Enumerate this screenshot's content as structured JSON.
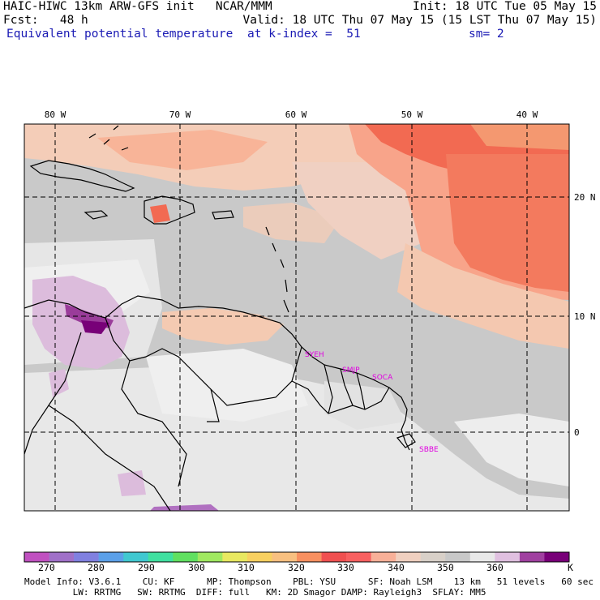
{
  "header": {
    "left_line1": "HAIC-HIWC 13km ARW-GFS init   NCAR/MMM",
    "left_line2": "Fcst:   48 h",
    "left_line3": "Equivalent potential temperature",
    "right_line1": "Init: 18 UTC Tue 05 May 15",
    "right_line2": "Valid: 18 UTC Thu 07 May 15 (15 LST Thu 07 May 15)",
    "kindex": "at k-index =  51",
    "sm": "sm= 2"
  },
  "map": {
    "lon_labels": [
      "80 W",
      "70 W",
      "60 W",
      "50 W",
      "40 W"
    ],
    "lat_labels": [
      "20 N",
      "10 N",
      "0"
    ],
    "stations": [
      "SYEH",
      "SMJP",
      "SOCA",
      "SBBE"
    ]
  },
  "colorbar": {
    "colors": [
      "#c050c0",
      "#a070c8",
      "#8080e0",
      "#5ba0e8",
      "#40c8d0",
      "#40e0a0",
      "#60e060",
      "#a0e860",
      "#e8e860",
      "#f8d060",
      "#f8c080",
      "#f89060",
      "#f05050",
      "#f86060",
      "#f8b098",
      "#f0d0c0",
      "#d8d0c8",
      "#c8c8c8",
      "#e8e8e8",
      "#e0c0e0",
      "#a040a0",
      "#780078"
    ],
    "labels": [
      "270",
      "280",
      "290",
      "300",
      "310",
      "320",
      "330",
      "340",
      "350",
      "360",
      "K"
    ]
  },
  "footer": {
    "line1": "Model Info: V3.6.1    CU: KF      MP: Thompson    PBL: YSU      SF: Noah LSM    13 km   51 levels   60 sec",
    "line2": "         LW: RRTMG   SW: RRTMG  DIFF: full   KM: 2D Smagor DAMP: Rayleigh3  SFLAY: MM5"
  }
}
